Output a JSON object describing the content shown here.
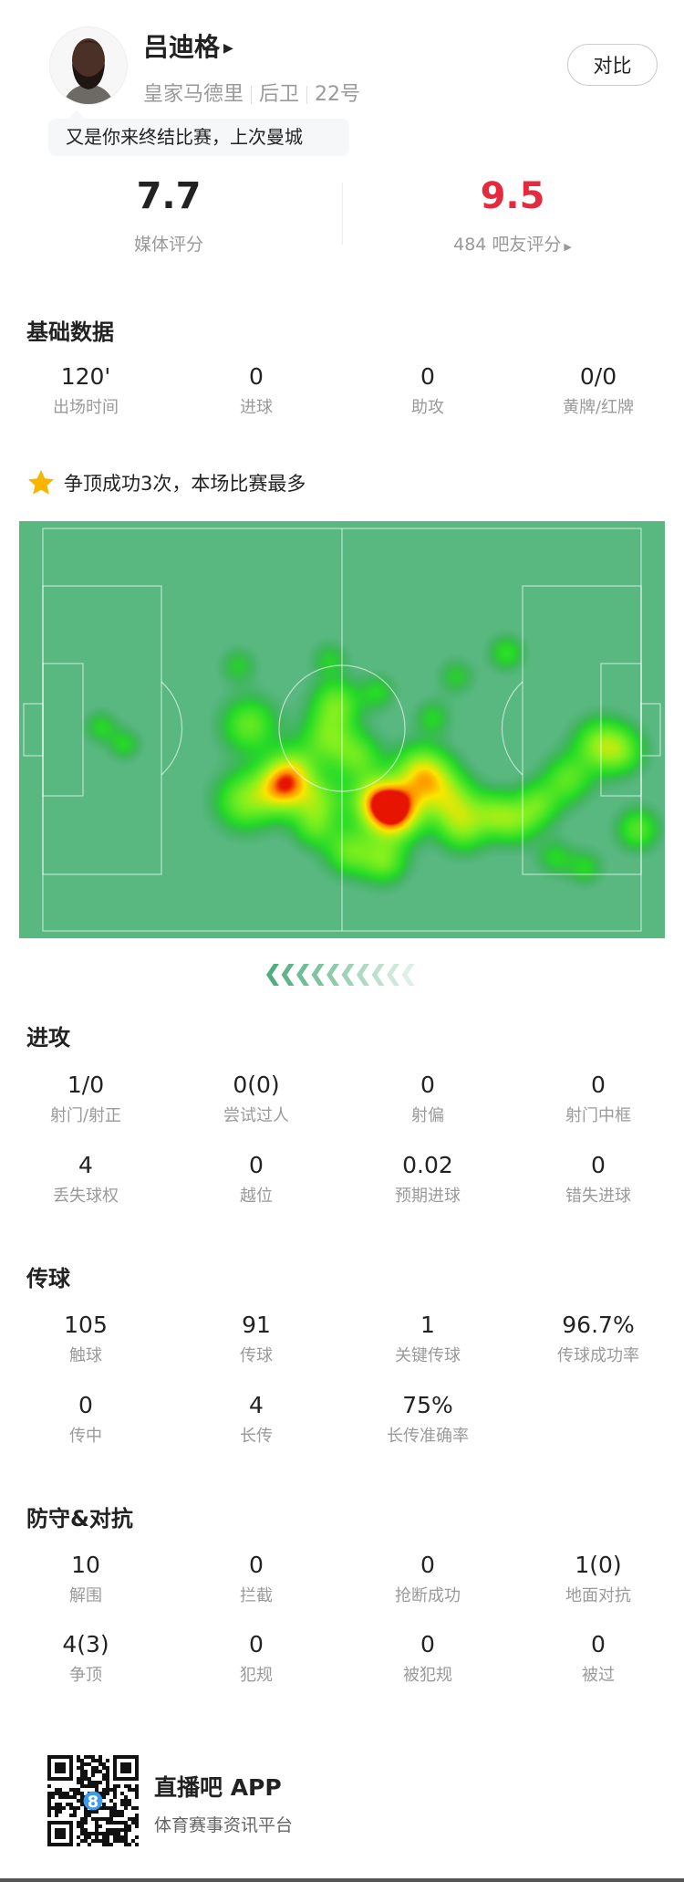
{
  "player": {
    "name": "吕迪格",
    "team": "皇家马德里",
    "position": "后卫",
    "number": "22号",
    "compare_label": "对比",
    "quote": "又是你来终结比赛，上次曼城"
  },
  "ratings": {
    "media_score": "7.7",
    "media_label": "媒体评分",
    "fan_score": "9.5",
    "fan_label": "484 吧友评分",
    "fan_score_color": "#e8283c"
  },
  "sections": [
    {
      "title": "基础数据",
      "stats": [
        {
          "value": "120'",
          "label": "出场时间"
        },
        {
          "value": "0",
          "label": "进球"
        },
        {
          "value": "0",
          "label": "助攻"
        },
        {
          "value": "0/0",
          "label": "黄牌/红牌"
        }
      ]
    },
    {
      "title": "进攻",
      "stats": [
        {
          "value": "1/0",
          "label": "射门/射正"
        },
        {
          "value": "0(0)",
          "label": "尝试过人"
        },
        {
          "value": "0",
          "label": "射偏"
        },
        {
          "value": "0",
          "label": "射门中框"
        },
        {
          "value": "4",
          "label": "丢失球权"
        },
        {
          "value": "0",
          "label": "越位"
        },
        {
          "value": "0.02",
          "label": "预期进球"
        },
        {
          "value": "0",
          "label": "错失进球"
        }
      ]
    },
    {
      "title": "传球",
      "stats": [
        {
          "value": "105",
          "label": "触球"
        },
        {
          "value": "91",
          "label": "传球"
        },
        {
          "value": "1",
          "label": "关键传球"
        },
        {
          "value": "96.7%",
          "label": "传球成功率"
        },
        {
          "value": "0",
          "label": "传中"
        },
        {
          "value": "4",
          "label": "长传"
        },
        {
          "value": "75%",
          "label": "长传准确率"
        }
      ]
    },
    {
      "title": "防守&对抗",
      "stats": [
        {
          "value": "10",
          "label": "解围"
        },
        {
          "value": "0",
          "label": "拦截"
        },
        {
          "value": "0",
          "label": "抢断成功"
        },
        {
          "value": "1(0)",
          "label": "地面对抗"
        },
        {
          "value": "4(3)",
          "label": "争顶"
        },
        {
          "value": "0",
          "label": "犯规"
        },
        {
          "value": "0",
          "label": "被犯规"
        },
        {
          "value": "0",
          "label": "被过"
        }
      ]
    }
  ],
  "highlight": {
    "icon": "star-icon",
    "text": "争顶成功3次，本场比赛最多",
    "icon_color": "#f7b500"
  },
  "heatmap": {
    "pitch_color": "#58b87f",
    "direction": "attacking-left"
  },
  "footer": {
    "app_name": "直播吧 APP",
    "tagline": "体育赛事资讯平台"
  }
}
